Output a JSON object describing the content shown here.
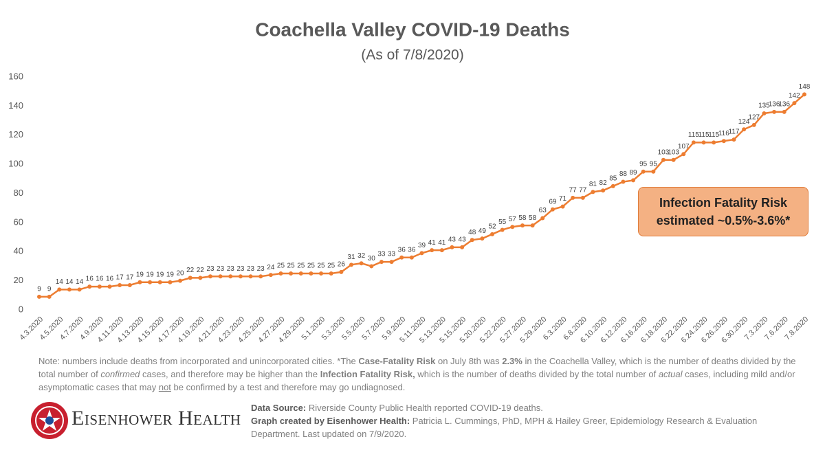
{
  "chart_data": {
    "type": "line",
    "title": "Coachella Valley COVID-19 Deaths",
    "subtitle": "(As of 7/8/2020)",
    "categories": [
      "4.3.2020",
      null,
      "4.5.2020",
      null,
      "4.7.2020",
      null,
      "4.9.2020",
      null,
      "4.11.2020",
      null,
      "4.13.2020",
      null,
      "4.15.2020",
      null,
      "4.17.2020",
      null,
      "4.19.2020",
      null,
      "4.21.2020",
      null,
      "4.23.2020",
      null,
      "4.25.2020",
      null,
      "4.27.2020",
      null,
      "4.29.2020",
      null,
      "5.1.2020",
      null,
      "5.3.2020",
      null,
      "5.5.2020",
      null,
      "5.7.2020",
      null,
      "5.9.2020",
      null,
      "5.11.2020",
      null,
      "5.13.2020",
      null,
      "5.15.2020",
      null,
      "5.20.2020",
      null,
      "5.22.2020",
      null,
      "5.27.2020",
      null,
      "5.29.2020",
      null,
      "6.3.2020",
      null,
      "6.8.2020",
      null,
      "6.10.2020",
      null,
      "6.12.2020",
      null,
      "6.16.2020",
      null,
      "6.18.2020",
      null,
      "6.22.2020",
      null,
      "6.24.2020",
      null,
      "6.26.2020",
      null,
      "6.30.2020",
      null,
      "7.3.2020",
      null,
      "7.6.2020",
      null,
      "7.8.2020"
    ],
    "values": [
      9,
      9,
      14,
      14,
      14,
      16,
      16,
      16,
      17,
      17,
      19,
      19,
      19,
      19,
      20,
      22,
      22,
      23,
      23,
      23,
      23,
      23,
      23,
      24,
      25,
      25,
      25,
      25,
      25,
      25,
      26,
      31,
      32,
      30,
      33,
      33,
      36,
      36,
      39,
      41,
      41,
      43,
      43,
      48,
      49,
      52,
      55,
      57,
      58,
      58,
      63,
      69,
      71,
      77,
      77,
      81,
      82,
      85,
      88,
      89,
      95,
      95,
      103,
      103,
      107,
      115,
      115,
      115,
      116,
      117,
      124,
      127,
      135,
      136,
      136,
      142,
      148
    ],
    "color": "#ed7d31",
    "ylim": [
      0,
      160
    ],
    "yticks": [
      0,
      20,
      40,
      60,
      80,
      100,
      120,
      140,
      160
    ],
    "grid": false,
    "annotation": [
      "Infection Fatality Risk",
      "estimated ~0.5%-3.6%*"
    ]
  },
  "note": [
    "Note: numbers include deaths from incorporated and unincorporated cities. *The ",
    "Case-Fatality Risk",
    " on July 8th was ",
    "2.3%",
    " in the Coachella Valley, which is the number of deaths divided by the total number of ",
    "confirmed",
    " cases, and therefore may be higher than the ",
    "Infection Fatality Risk,",
    " which is the number of deaths divided by the total number of ",
    "actual",
    " cases, including mild and/or asymptomatic cases that may ",
    "not",
    " be confirmed by a test and therefore may go undiagnosed."
  ],
  "logo": "Eisenhower Health",
  "source": [
    "Data Source:",
    " Riverside County Public Health reported COVID-19 deaths.",
    "Graph created by Eisenhower Health:",
    " Patricia L. Cummings, PhD, MPH & Hailey Greer, Epidemiology Research & Evaluation Department. Last updated on 7/9/2020."
  ]
}
